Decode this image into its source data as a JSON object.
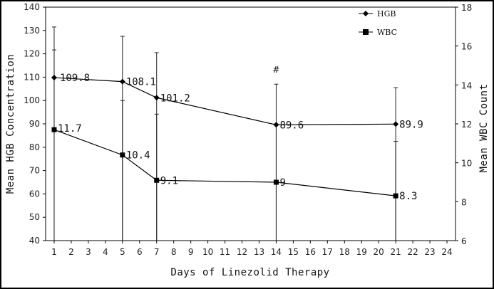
{
  "chart_data": {
    "type": "line",
    "xlabel": "Days of Linezolid Therapy",
    "ylabel_left": "Mean HGB Concentration",
    "ylabel_right": "Mean WBC Count",
    "x_ticks": [
      1,
      2,
      3,
      4,
      5,
      6,
      7,
      8,
      9,
      10,
      11,
      12,
      13,
      14,
      15,
      16,
      17,
      18,
      19,
      20,
      21,
      22,
      23,
      24
    ],
    "xlim": [
      0.5,
      24.5
    ],
    "ylim_left": [
      40,
      140
    ],
    "y_ticks_left": [
      40,
      50,
      60,
      70,
      80,
      90,
      100,
      110,
      120,
      130,
      140
    ],
    "ylim_right": [
      6,
      18
    ],
    "y_ticks_right": [
      6,
      8,
      10,
      12,
      14,
      16,
      18
    ],
    "legend_position": "top-right",
    "series": [
      {
        "name": "HGB",
        "axis": "left",
        "marker": "diamond",
        "x": [
          1,
          5,
          7,
          14,
          21
        ],
        "y": [
          109.8,
          108.1,
          101.2,
          89.6,
          89.9
        ],
        "labels": [
          "109.8",
          "108.1",
          "101.2",
          "89.6",
          "89.9"
        ],
        "error_upper": [
          131.5,
          127.5,
          120.5,
          107,
          105.5
        ]
      },
      {
        "name": "WBC",
        "axis": "right",
        "marker": "square",
        "x": [
          1,
          5,
          7,
          14,
          21
        ],
        "y": [
          11.7,
          10.4,
          9.1,
          9.0,
          8.3
        ],
        "labels": [
          "11.7",
          "10.4",
          "9.1",
          "9",
          "8.3"
        ],
        "error_upper": [
          15.8,
          13.2,
          12.5,
          12.0,
          11.1
        ]
      }
    ],
    "annotations": [
      {
        "text": "#",
        "x": 14,
        "axis": "left",
        "y": 112
      }
    ]
  }
}
